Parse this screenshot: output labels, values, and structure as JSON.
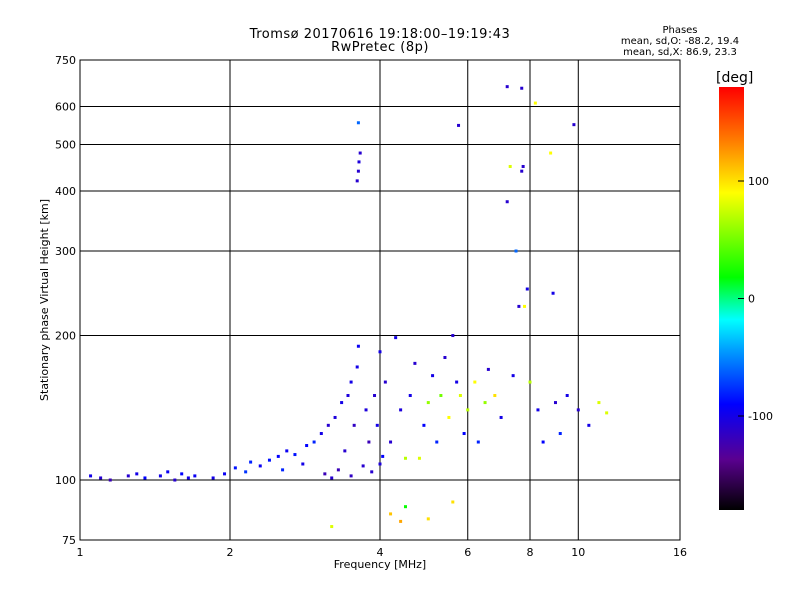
{
  "chart_data": {
    "type": "scatter",
    "title": "Tromsø 20170616 19:18:00–19:19:43",
    "subtitle": "RwPretec (8p)",
    "xlabel": "Frequency [MHz]",
    "ylabel": "Stationary phase Virtual Height [km]",
    "xscale": "log",
    "yscale": "log",
    "xlim": [
      1,
      16
    ],
    "ylim": [
      75,
      750
    ],
    "xticks": [
      {
        "v": 1,
        "label": "1"
      },
      {
        "v": 2,
        "label": "2"
      },
      {
        "v": 4,
        "label": "4"
      },
      {
        "v": 6,
        "label": "6"
      },
      {
        "v": 8,
        "label": "8"
      },
      {
        "v": 10,
        "label": "10"
      },
      {
        "v": 16,
        "label": "16"
      }
    ],
    "yticks": [
      {
        "v": 75,
        "label": "75"
      },
      {
        "v": 100,
        "label": "100"
      },
      {
        "v": 200,
        "label": "200"
      },
      {
        "v": 300,
        "label": "300"
      },
      {
        "v": 400,
        "label": "400"
      },
      {
        "v": 500,
        "label": "500"
      },
      {
        "v": 600,
        "label": "600"
      },
      {
        "v": 750,
        "label": "750"
      }
    ],
    "grid": true,
    "colorbar": {
      "label": "[deg]",
      "range": [
        -180,
        180
      ],
      "ticks": [
        {
          "v": 100,
          "label": "100"
        },
        {
          "v": 0,
          "label": "0"
        },
        {
          "v": -100,
          "label": "-100"
        }
      ]
    },
    "points": [
      [
        1.05,
        102,
        -100
      ],
      [
        1.1,
        101,
        -110
      ],
      [
        1.15,
        100,
        -120
      ],
      [
        1.25,
        102,
        -110
      ],
      [
        1.3,
        103,
        -100
      ],
      [
        1.35,
        101,
        -90
      ],
      [
        1.45,
        102,
        -100
      ],
      [
        1.5,
        104,
        -95
      ],
      [
        1.55,
        100,
        -110
      ],
      [
        1.6,
        103,
        -90
      ],
      [
        1.65,
        101,
        -100
      ],
      [
        1.7,
        102,
        -95
      ],
      [
        1.85,
        101,
        -100
      ],
      [
        1.95,
        103,
        -95
      ],
      [
        2.05,
        106,
        -85
      ],
      [
        2.15,
        104,
        -75
      ],
      [
        2.2,
        109,
        -80
      ],
      [
        2.3,
        107,
        -95
      ],
      [
        2.4,
        110,
        -85
      ],
      [
        2.5,
        112,
        -90
      ],
      [
        2.55,
        105,
        -80
      ],
      [
        2.6,
        115,
        -95
      ],
      [
        2.7,
        113,
        -85
      ],
      [
        2.8,
        108,
        -100
      ],
      [
        2.85,
        118,
        -90
      ],
      [
        2.95,
        120,
        -80
      ],
      [
        3.05,
        125,
        -100
      ],
      [
        3.1,
        103,
        -120
      ],
      [
        3.15,
        130,
        -110
      ],
      [
        3.2,
        101,
        -110
      ],
      [
        3.25,
        135,
        -105
      ],
      [
        3.3,
        105,
        -120
      ],
      [
        3.35,
        145,
        -100
      ],
      [
        3.4,
        115,
        -110
      ],
      [
        3.45,
        150,
        -105
      ],
      [
        3.5,
        102,
        -115
      ],
      [
        3.5,
        160,
        -100
      ],
      [
        3.55,
        130,
        -115
      ],
      [
        3.6,
        172,
        -100
      ],
      [
        3.62,
        190,
        -95
      ],
      [
        3.6,
        420,
        -110
      ],
      [
        3.62,
        440,
        -110
      ],
      [
        3.63,
        460,
        -105
      ],
      [
        3.65,
        480,
        -110
      ],
      [
        3.62,
        555,
        -60
      ],
      [
        3.7,
        107,
        -110
      ],
      [
        3.75,
        140,
        -105
      ],
      [
        3.8,
        120,
        -120
      ],
      [
        3.85,
        104,
        -110
      ],
      [
        3.9,
        150,
        -110
      ],
      [
        3.95,
        130,
        -100
      ],
      [
        4.0,
        185,
        -100
      ],
      [
        4.0,
        108,
        -105
      ],
      [
        4.05,
        112,
        -90
      ],
      [
        4.1,
        160,
        -110
      ],
      [
        4.2,
        120,
        -110
      ],
      [
        4.3,
        198,
        -100
      ],
      [
        4.4,
        140,
        -105
      ],
      [
        4.5,
        111,
        70
      ],
      [
        4.6,
        150,
        -100
      ],
      [
        4.7,
        175,
        -110
      ],
      [
        4.8,
        111,
        80
      ],
      [
        4.9,
        130,
        -90
      ],
      [
        5.0,
        145,
        60
      ],
      [
        5.1,
        165,
        -100
      ],
      [
        5.2,
        120,
        -80
      ],
      [
        5.3,
        150,
        50
      ],
      [
        5.4,
        180,
        -110
      ],
      [
        5.5,
        135,
        90
      ],
      [
        5.6,
        200,
        -110
      ],
      [
        5.7,
        160,
        -100
      ],
      [
        5.75,
        548,
        -110
      ],
      [
        5.8,
        150,
        80
      ],
      [
        5.9,
        125,
        -90
      ],
      [
        6.0,
        140,
        70
      ],
      [
        6.2,
        160,
        90
      ],
      [
        6.3,
        120,
        -80
      ],
      [
        6.5,
        145,
        60
      ],
      [
        6.6,
        170,
        -110
      ],
      [
        6.8,
        150,
        100
      ],
      [
        7.0,
        135,
        -100
      ],
      [
        7.2,
        660,
        -110
      ],
      [
        7.2,
        380,
        -110
      ],
      [
        7.3,
        450,
        80
      ],
      [
        7.4,
        165,
        -100
      ],
      [
        7.5,
        300,
        -60
      ],
      [
        7.6,
        230,
        -110
      ],
      [
        7.7,
        655,
        -110
      ],
      [
        7.7,
        440,
        -110
      ],
      [
        7.75,
        450,
        -110
      ],
      [
        7.8,
        230,
        90
      ],
      [
        7.9,
        250,
        -100
      ],
      [
        8.0,
        160,
        70
      ],
      [
        8.2,
        610,
        90
      ],
      [
        8.3,
        140,
        -100
      ],
      [
        8.5,
        120,
        -90
      ],
      [
        8.8,
        480,
        90
      ],
      [
        8.9,
        245,
        -100
      ],
      [
        9.0,
        145,
        -110
      ],
      [
        9.2,
        125,
        -80
      ],
      [
        9.5,
        150,
        -100
      ],
      [
        9.8,
        550,
        -110
      ],
      [
        10.0,
        140,
        -110
      ],
      [
        10.5,
        130,
        -100
      ],
      [
        11.0,
        145,
        80
      ],
      [
        11.4,
        138,
        80
      ],
      [
        3.2,
        80,
        80
      ],
      [
        4.2,
        85,
        110
      ],
      [
        4.5,
        88,
        20
      ],
      [
        4.4,
        82,
        120
      ],
      [
        5.6,
        90,
        100
      ],
      [
        5.0,
        83,
        100
      ]
    ]
  }
}
